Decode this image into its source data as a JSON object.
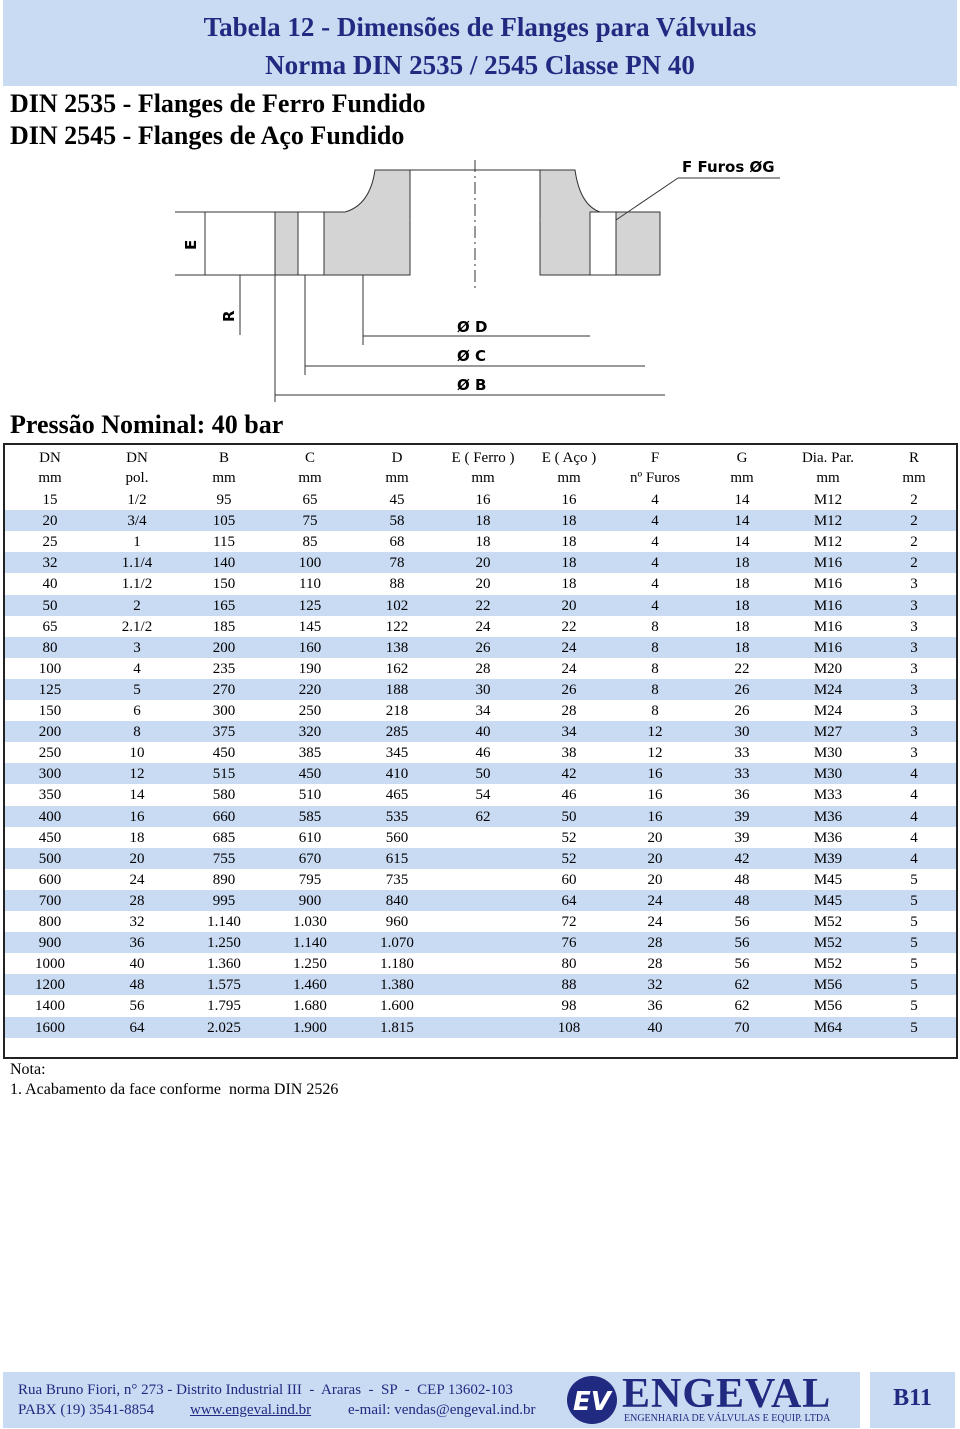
{
  "header": {
    "title": "Tabela 12 - Dimensões de Flanges para Válvulas",
    "subtitle": "Norma DIN 2535 / 2545 Classe PN 40"
  },
  "standards": [
    "DIN 2535 - Flanges de Ferro Fundido",
    "DIN 2545 - Flanges de Aço Fundido"
  ],
  "drawing": {
    "holes_label": "F Furos ØG",
    "e_label": "E",
    "r_label": "R",
    "d_label": "Ø D",
    "c_label": "Ø C",
    "b_label": "Ø B"
  },
  "pressure": "Pressão Nominal: 40 bar",
  "table": {
    "columns": [
      {
        "name": "DN",
        "unit": "mm"
      },
      {
        "name": "DN",
        "unit": "pol."
      },
      {
        "name": "B",
        "unit": "mm"
      },
      {
        "name": "C",
        "unit": "mm"
      },
      {
        "name": "D",
        "unit": "mm"
      },
      {
        "name": "E  ( Ferro )",
        "unit": "mm"
      },
      {
        "name": "E ( Aço )",
        "unit": "mm"
      },
      {
        "name": "F",
        "unit": "nº Furos"
      },
      {
        "name": "G",
        "unit": "mm"
      },
      {
        "name": "Dia. Par.",
        "unit": "mm"
      },
      {
        "name": "R",
        "unit": "mm"
      }
    ],
    "rows": [
      [
        "15",
        "1/2",
        "95",
        "65",
        "45",
        "16",
        "16",
        "4",
        "14",
        "M12",
        "2"
      ],
      [
        "20",
        "3/4",
        "105",
        "75",
        "58",
        "18",
        "18",
        "4",
        "14",
        "M12",
        "2"
      ],
      [
        "25",
        "1",
        "115",
        "85",
        "68",
        "18",
        "18",
        "4",
        "14",
        "M12",
        "2"
      ],
      [
        "32",
        "1.1/4",
        "140",
        "100",
        "78",
        "20",
        "18",
        "4",
        "18",
        "M16",
        "2"
      ],
      [
        "40",
        "1.1/2",
        "150",
        "110",
        "88",
        "20",
        "18",
        "4",
        "18",
        "M16",
        "3"
      ],
      [
        "50",
        "2",
        "165",
        "125",
        "102",
        "22",
        "20",
        "4",
        "18",
        "M16",
        "3"
      ],
      [
        "65",
        "2.1/2",
        "185",
        "145",
        "122",
        "24",
        "22",
        "8",
        "18",
        "M16",
        "3"
      ],
      [
        "80",
        "3",
        "200",
        "160",
        "138",
        "26",
        "24",
        "8",
        "18",
        "M16",
        "3"
      ],
      [
        "100",
        "4",
        "235",
        "190",
        "162",
        "28",
        "24",
        "8",
        "22",
        "M20",
        "3"
      ],
      [
        "125",
        "5",
        "270",
        "220",
        "188",
        "30",
        "26",
        "8",
        "26",
        "M24",
        "3"
      ],
      [
        "150",
        "6",
        "300",
        "250",
        "218",
        "34",
        "28",
        "8",
        "26",
        "M24",
        "3"
      ],
      [
        "200",
        "8",
        "375",
        "320",
        "285",
        "40",
        "34",
        "12",
        "30",
        "M27",
        "3"
      ],
      [
        "250",
        "10",
        "450",
        "385",
        "345",
        "46",
        "38",
        "12",
        "33",
        "M30",
        "3"
      ],
      [
        "300",
        "12",
        "515",
        "450",
        "410",
        "50",
        "42",
        "16",
        "33",
        "M30",
        "4"
      ],
      [
        "350",
        "14",
        "580",
        "510",
        "465",
        "54",
        "46",
        "16",
        "36",
        "M33",
        "4"
      ],
      [
        "400",
        "16",
        "660",
        "585",
        "535",
        "62",
        "50",
        "16",
        "39",
        "M36",
        "4"
      ],
      [
        "450",
        "18",
        "685",
        "610",
        "560",
        null,
        "52",
        "20",
        "39",
        "M36",
        "4"
      ],
      [
        "500",
        "20",
        "755",
        "670",
        "615",
        null,
        "52",
        "20",
        "42",
        "M39",
        "4"
      ],
      [
        "600",
        "24",
        "890",
        "795",
        "735",
        null,
        "60",
        "20",
        "48",
        "M45",
        "5"
      ],
      [
        "700",
        "28",
        "995",
        "900",
        "840",
        null,
        "64",
        "24",
        "48",
        "M45",
        "5"
      ],
      [
        "800",
        "32",
        "1.140",
        "1.030",
        "960",
        null,
        "72",
        "24",
        "56",
        "M52",
        "5"
      ],
      [
        "900",
        "36",
        "1.250",
        "1.140",
        "1.070",
        null,
        "76",
        "28",
        "56",
        "M52",
        "5"
      ],
      [
        "1000",
        "40",
        "1.360",
        "1.250",
        "1.180",
        null,
        "80",
        "28",
        "56",
        "M52",
        "5"
      ],
      [
        "1200",
        "48",
        "1.575",
        "1.460",
        "1.380",
        null,
        "88",
        "32",
        "62",
        "M56",
        "5"
      ],
      [
        "1400",
        "56",
        "1.795",
        "1.680",
        "1.600",
        null,
        "98",
        "36",
        "62",
        "M56",
        "5"
      ],
      [
        "1600",
        "64",
        "2.025",
        "1.900",
        "1.815",
        null,
        "108",
        "40",
        "70",
        "M64",
        "5"
      ]
    ]
  },
  "notes": {
    "heading": "Nota:",
    "items": [
      "1. Acabamento da face conforme  norma DIN 2526"
    ]
  },
  "footer": {
    "address": "Rua Bruno Fiori, n° 273 - Distrito Industrial III  -  Araras  -  SP  -  CEP 13602-103",
    "phone": "PABX (19) 3541-8854",
    "website": "www.engeval.ind.br",
    "email": "e-mail: vendas@engeval.ind.br",
    "logo_mark": "EV",
    "company": "ENGEVAL",
    "company_tagline": "ENGENHARIA DE VÁLVULAS E EQUIP. LTDA",
    "page_code": "B11"
  }
}
